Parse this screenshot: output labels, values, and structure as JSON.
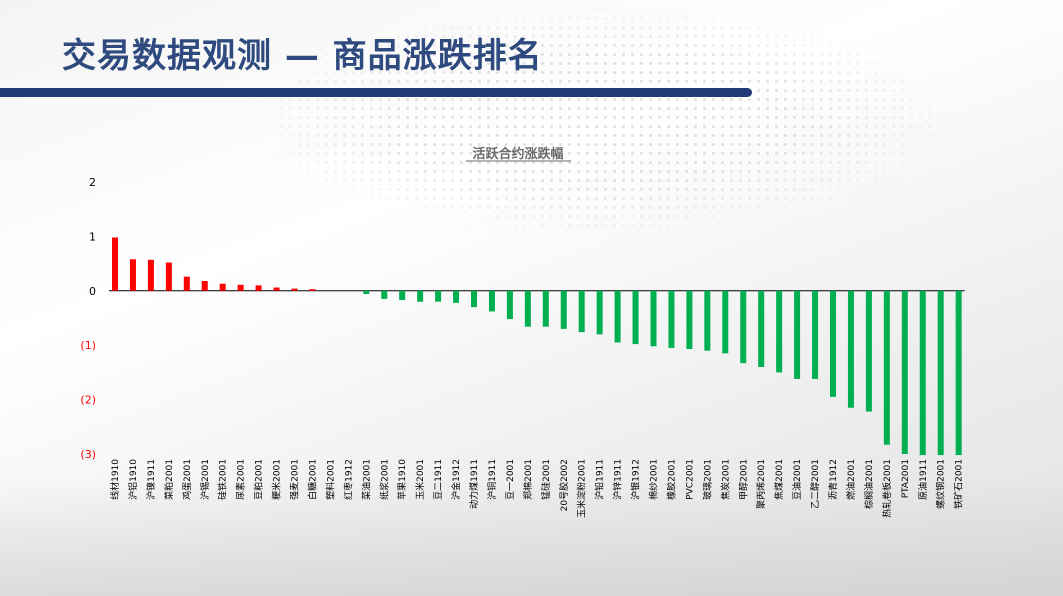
{
  "header": {
    "title": "交易数据观测 — 商品涨跌排名"
  },
  "colors": {
    "positive": "#ff0000",
    "negative": "#00b050",
    "title_bar": "#1f3c78",
    "title_text": "#2e4a7e"
  },
  "chart_data": {
    "type": "bar",
    "title": "活跃合约涨跌幅",
    "xlabel": "",
    "ylabel": "",
    "ylim": [
      -3,
      2
    ],
    "y_ticks": [
      2,
      1,
      0,
      -1,
      -2,
      -3
    ],
    "y_tick_labels": [
      "2",
      "1",
      "0",
      "(1)",
      "(2)",
      "(3)"
    ],
    "grid": false,
    "legend": "none",
    "categories": [
      "线材1910",
      "沪铝1910",
      "沪镍1911",
      "菜粕2001",
      "鸡蛋2001",
      "沪锡2001",
      "硅铁2001",
      "尿素2001",
      "豆粕2001",
      "粳米2001",
      "强麦2001",
      "白糖2001",
      "塑料2001",
      "红枣1912",
      "菜油2001",
      "纸浆2001",
      "苹果1910",
      "玉米2001",
      "豆二1911",
      "沪金1912",
      "动力煤1911",
      "沪铜1911",
      "豆一2001",
      "郑棉2001",
      "锰硅2001",
      "20号胶2002",
      "玉米淀粉2001",
      "沪铅1911",
      "沪锌1911",
      "沪银1912",
      "棉纱2001",
      "橡胶2001",
      "PVC2001",
      "玻璃2001",
      "焦炭2001",
      "甲醇2001",
      "聚丙烯2001",
      "焦煤2001",
      "豆油2001",
      "乙二醇2001",
      "沥青1912",
      "燃油2001",
      "棕榈油2001",
      "热轧卷板2001",
      "PTA2001",
      "原油1911",
      "螺纹钢2001",
      "铁矿石2001"
    ],
    "values": [
      0.98,
      0.58,
      0.57,
      0.52,
      0.26,
      0.18,
      0.13,
      0.11,
      0.1,
      0.06,
      0.04,
      0.03,
      0,
      0,
      -0.06,
      -0.15,
      -0.17,
      -0.2,
      -0.2,
      -0.22,
      -0.3,
      -0.38,
      -0.52,
      -0.66,
      -0.66,
      -0.7,
      -0.76,
      -0.8,
      -0.95,
      -0.98,
      -1.02,
      -1.05,
      -1.07,
      -1.1,
      -1.15,
      -1.33,
      -1.4,
      -1.5,
      -1.62,
      -1.62,
      -1.95,
      -2.15,
      -2.22,
      -2.83,
      -3.0,
      -3.02,
      -3.02,
      -3.02
    ]
  }
}
